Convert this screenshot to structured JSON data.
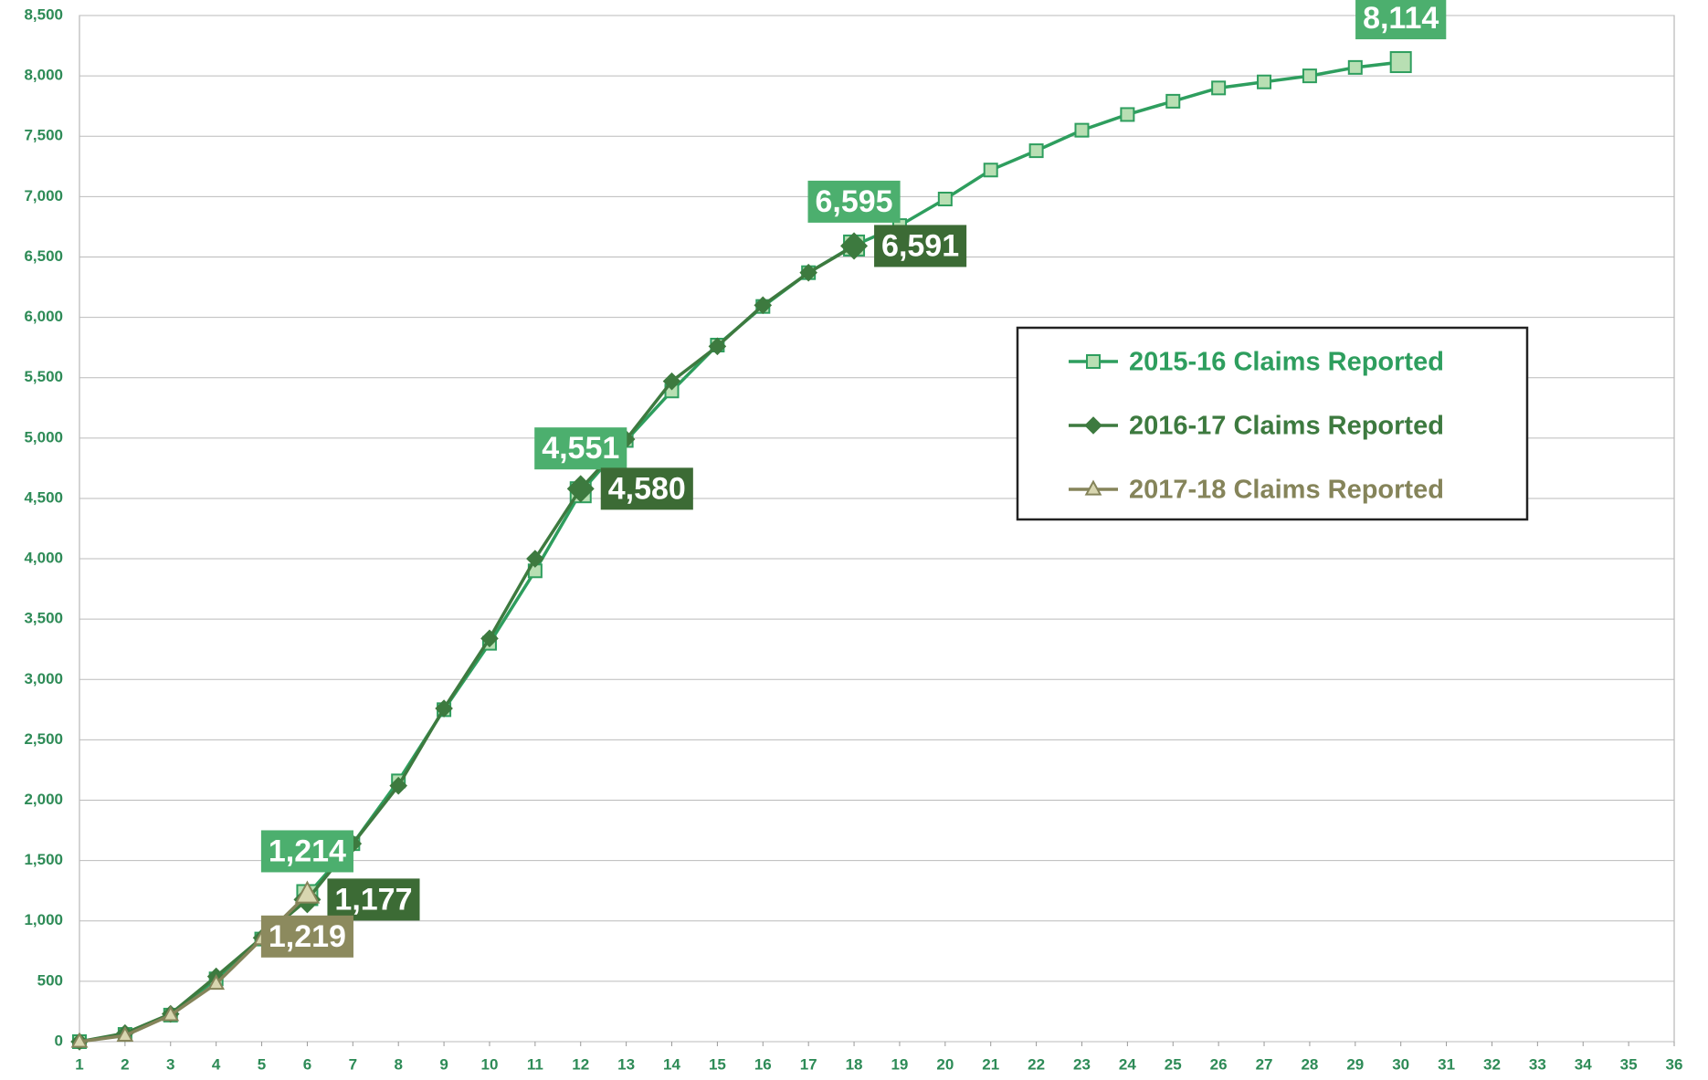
{
  "chart_data": {
    "type": "line",
    "xlim": [
      1,
      36
    ],
    "xticks": [
      1,
      2,
      3,
      4,
      5,
      6,
      7,
      8,
      9,
      10,
      11,
      12,
      13,
      14,
      15,
      16,
      17,
      18,
      19,
      20,
      21,
      22,
      23,
      24,
      25,
      26,
      27,
      28,
      29,
      30,
      31,
      32,
      33,
      34,
      35,
      36
    ],
    "ylim": [
      0,
      8500
    ],
    "yticks": [
      0,
      500,
      {
        "value": 1000,
        "label": "1,000"
      },
      {
        "value": 1500,
        "label": "1,500"
      },
      {
        "value": 2000,
        "label": "2,000"
      },
      {
        "value": 2500,
        "label": "2,500"
      },
      {
        "value": 3000,
        "label": "3,000"
      },
      {
        "value": 3500,
        "label": "3,500"
      },
      {
        "value": 4000,
        "label": "4,000"
      },
      {
        "value": 4500,
        "label": "4,500"
      },
      {
        "value": 5000,
        "label": "5,000"
      },
      {
        "value": 5500,
        "label": "5,500"
      },
      {
        "value": 6000,
        "label": "6,000"
      },
      {
        "value": 6500,
        "label": "6,500"
      },
      {
        "value": 7000,
        "label": "7,000"
      },
      {
        "value": 7500,
        "label": "7,500"
      },
      {
        "value": 8000,
        "label": "8,000"
      },
      {
        "value": 8500,
        "label": "8,500"
      }
    ],
    "grid": true,
    "legend": "right",
    "series": [
      {
        "name": "2015-16 Claims Reported",
        "color": "#2e9e5e",
        "marker": "square",
        "x": [
          1,
          2,
          3,
          4,
          5,
          6,
          7,
          8,
          9,
          10,
          11,
          12,
          13,
          14,
          15,
          16,
          17,
          18,
          19,
          20,
          21,
          22,
          23,
          24,
          25,
          26,
          27,
          28,
          29,
          30
        ],
        "values": [
          0,
          60,
          220,
          520,
          850,
          1214,
          1640,
          2160,
          2750,
          3300,
          3900,
          4551,
          4980,
          5390,
          5770,
          6090,
          6370,
          6595,
          6760,
          6980,
          7220,
          7380,
          7550,
          7680,
          7790,
          7900,
          7950,
          8000,
          8070,
          8114
        ],
        "value_labels": [
          null,
          null,
          null,
          null,
          null,
          "1,214",
          null,
          null,
          null,
          null,
          null,
          "4,551",
          null,
          null,
          null,
          null,
          null,
          "6,595",
          null,
          null,
          null,
          null,
          null,
          null,
          null,
          null,
          null,
          null,
          null,
          "8,114"
        ]
      },
      {
        "name": "2016-17 Claims Reported",
        "color": "#3d7a3f",
        "marker": "diamond",
        "x": [
          1,
          2,
          3,
          4,
          5,
          6,
          7,
          8,
          9,
          10,
          11,
          12,
          13,
          14,
          15,
          16,
          17,
          18
        ],
        "values": [
          0,
          70,
          230,
          540,
          860,
          1177,
          1640,
          2120,
          2760,
          3340,
          4000,
          4580,
          4990,
          5470,
          5760,
          6100,
          6370,
          6591
        ],
        "value_labels": [
          null,
          null,
          null,
          null,
          null,
          "1,177",
          null,
          null,
          null,
          null,
          null,
          "4,580",
          null,
          null,
          null,
          null,
          null,
          "6,591"
        ]
      },
      {
        "name": "2017-18 Claims Reported",
        "color": "#85845a",
        "marker": "triangle",
        "x": [
          1,
          2,
          3,
          4,
          5,
          6
        ],
        "values": [
          0,
          50,
          220,
          480,
          850,
          1219
        ],
        "value_labels": [
          null,
          null,
          null,
          null,
          null,
          "1,219"
        ]
      }
    ]
  }
}
